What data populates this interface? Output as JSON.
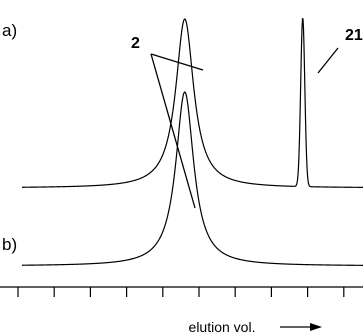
{
  "chart_data": {
    "type": "line",
    "xlabel": "elution vol.",
    "panels": [
      {
        "label": "a)",
        "peaks": [
          {
            "label": "2",
            "center": 0.509,
            "width": 0.03,
            "height": 1.0
          },
          {
            "label": "21",
            "center": 0.834,
            "width": 0.008,
            "height": 1.0
          }
        ]
      },
      {
        "label": "b)",
        "peaks": [
          {
            "label": "",
            "center": 0.509,
            "width": 0.03,
            "height": 1.0
          }
        ]
      }
    ],
    "grid": false,
    "legend": "none"
  }
}
